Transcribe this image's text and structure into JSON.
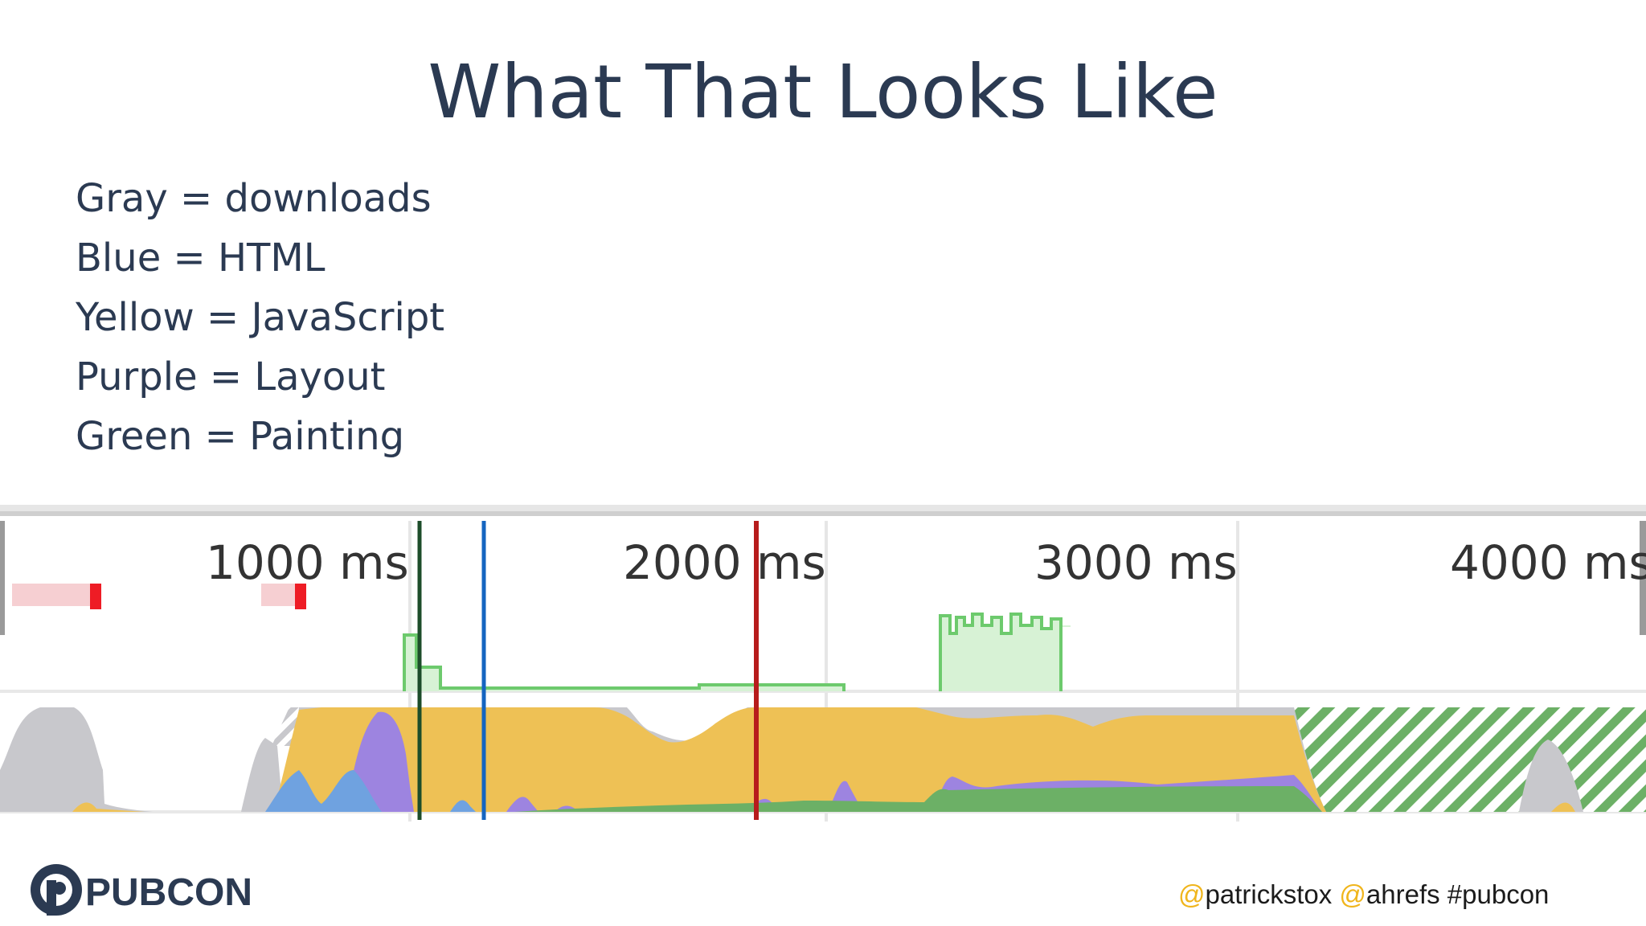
{
  "slide": {
    "title": "What That Looks Like",
    "legend": [
      "Gray = downloads",
      "Blue = HTML",
      "Yellow = JavaScript",
      "Purple = Layout",
      "Green = Painting"
    ]
  },
  "timeline": {
    "ticks": [
      "1000 ms",
      "2000 ms",
      "3000 ms",
      "4000 ms"
    ],
    "colors": {
      "downloads": "#c8c8cc",
      "html": "#6fa2e0",
      "javascript": "#eec155",
      "layout": "#9d84e0",
      "painting": "#6cb066",
      "paint_line": "#6dca6d",
      "marker_dark_green": "#1d4d2a",
      "marker_blue": "#1565c0",
      "marker_red": "#b71c1c",
      "long_task_red": "#ee1c25"
    }
  },
  "footer": {
    "logo_text": "PUBCON",
    "handle_1_at": "@",
    "handle_1": "patrickstox",
    "handle_2_at": "@",
    "handle_2": "ahrefs",
    "hashtag": "#pubcon"
  }
}
